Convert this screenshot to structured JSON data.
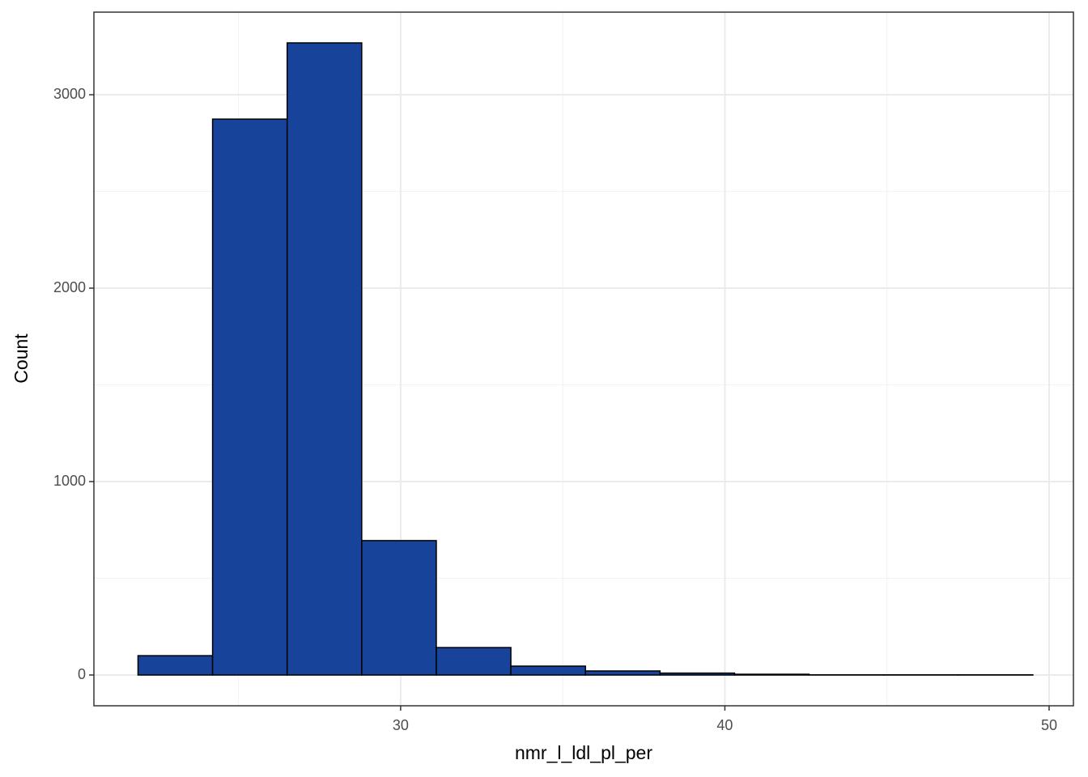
{
  "chart_data": {
    "type": "histogram",
    "x_label": "nmr_l_ldl_pl_per",
    "y_label": "Count",
    "bins": [
      21.9,
      24.2,
      26.5,
      28.8,
      31.1,
      33.4,
      35.7,
      38.0,
      40.3,
      42.6,
      44.9,
      47.2,
      49.5
    ],
    "values": [
      100,
      2874,
      3268,
      695,
      142,
      46,
      21,
      10,
      4,
      1,
      1,
      1
    ],
    "color": "#17449a",
    "edge_color": "#000000",
    "xlim": [
      20.54,
      50.75
    ],
    "ylim": [
      -159,
      3427
    ],
    "xticks": [
      30,
      40,
      50
    ],
    "yticks": [
      0,
      1000,
      2000,
      3000
    ],
    "minor_xticks": [
      25,
      35,
      45
    ],
    "minor_yticks": [
      500,
      1500,
      2500
    ],
    "grid": true
  }
}
